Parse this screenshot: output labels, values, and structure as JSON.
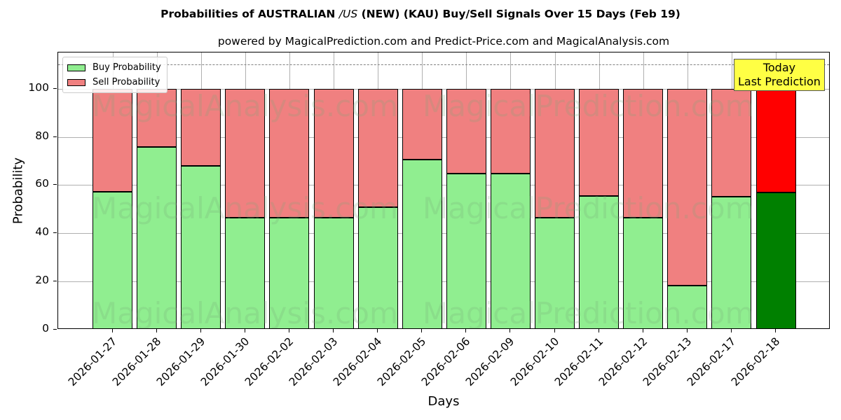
{
  "title_parts": {
    "pre": "Probabilities of AUSTRALIAN ",
    "italic": "/US",
    "post": " (NEW) (KAU) Buy/Sell Signals Over 15 Days (Feb 19)"
  },
  "subtitle": "powered by MagicalPrediction.com and Predict-Price.com and MagicalAnalysis.com",
  "watermarks": [
    "MagicalAnalysis.com",
    "MagicalPrediction.com"
  ],
  "annotation": {
    "line1": "Today",
    "line2": "Last Prediction"
  },
  "colors": {
    "buy": "#90ee90",
    "sell": "#f08080",
    "buy_today": "#008000",
    "sell_today": "#ff0000",
    "annotation_bg": "#ffff44"
  },
  "chart_data": {
    "type": "bar",
    "stacked": true,
    "title": "Probabilities of AUSTRALIAN /US (NEW) (KAU) Buy/Sell Signals Over 15 Days (Feb 19)",
    "subtitle": "powered by MagicalPrediction.com and Predict-Price.com and MagicalAnalysis.com",
    "xlabel": "Days",
    "ylabel": "Probability",
    "ylim": [
      0,
      115
    ],
    "yticks": [
      0,
      20,
      40,
      60,
      80,
      100
    ],
    "grid": true,
    "legend_position": "upper left",
    "reference_line": {
      "y": 110,
      "style": "dashed"
    },
    "categories": [
      "2026-01-27",
      "2026-01-28",
      "2026-01-29",
      "2026-01-30",
      "2026-02-02",
      "2026-02-03",
      "2026-02-04",
      "2026-02-05",
      "2026-02-06",
      "2026-02-09",
      "2026-02-10",
      "2026-02-11",
      "2026-02-12",
      "2026-02-13",
      "2026-02-17",
      "2026-02-18"
    ],
    "series": [
      {
        "name": "Buy Probability",
        "values": [
          57.1,
          75.8,
          67.9,
          46.4,
          46.4,
          46.4,
          50.7,
          70.6,
          64.7,
          64.7,
          46.5,
          55.4,
          46.5,
          18.4,
          55.3,
          57.0
        ]
      },
      {
        "name": "Sell Probability",
        "values": [
          42.9,
          24.2,
          32.1,
          53.6,
          53.6,
          53.6,
          49.3,
          29.4,
          35.3,
          35.3,
          53.5,
          44.6,
          53.5,
          81.6,
          44.7,
          43.0
        ]
      }
    ],
    "highlight_last": true
  }
}
